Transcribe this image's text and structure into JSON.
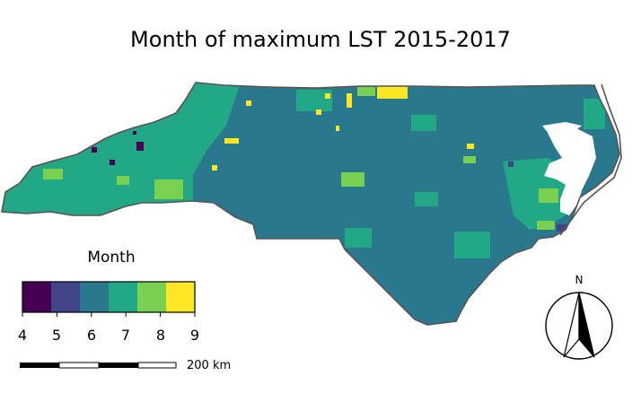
{
  "map": {
    "title": "Month of maximum LST 2015-2017",
    "legend": {
      "title": "Month",
      "ticks": [
        "4",
        "5",
        "6",
        "7",
        "8",
        "9"
      ],
      "colors": [
        "#440154",
        "#414487",
        "#2a788e",
        "#22a884",
        "#7ad151",
        "#fde725"
      ]
    },
    "scale_bar": {
      "label": "200 km"
    },
    "north_arrow": {
      "label": "N"
    },
    "palette": {
      "m4": "#440154",
      "m5": "#414487",
      "m6": "#2a788e",
      "m7": "#22a884",
      "m8": "#7ad151",
      "m9": "#fde725",
      "outline": "#555555"
    }
  }
}
